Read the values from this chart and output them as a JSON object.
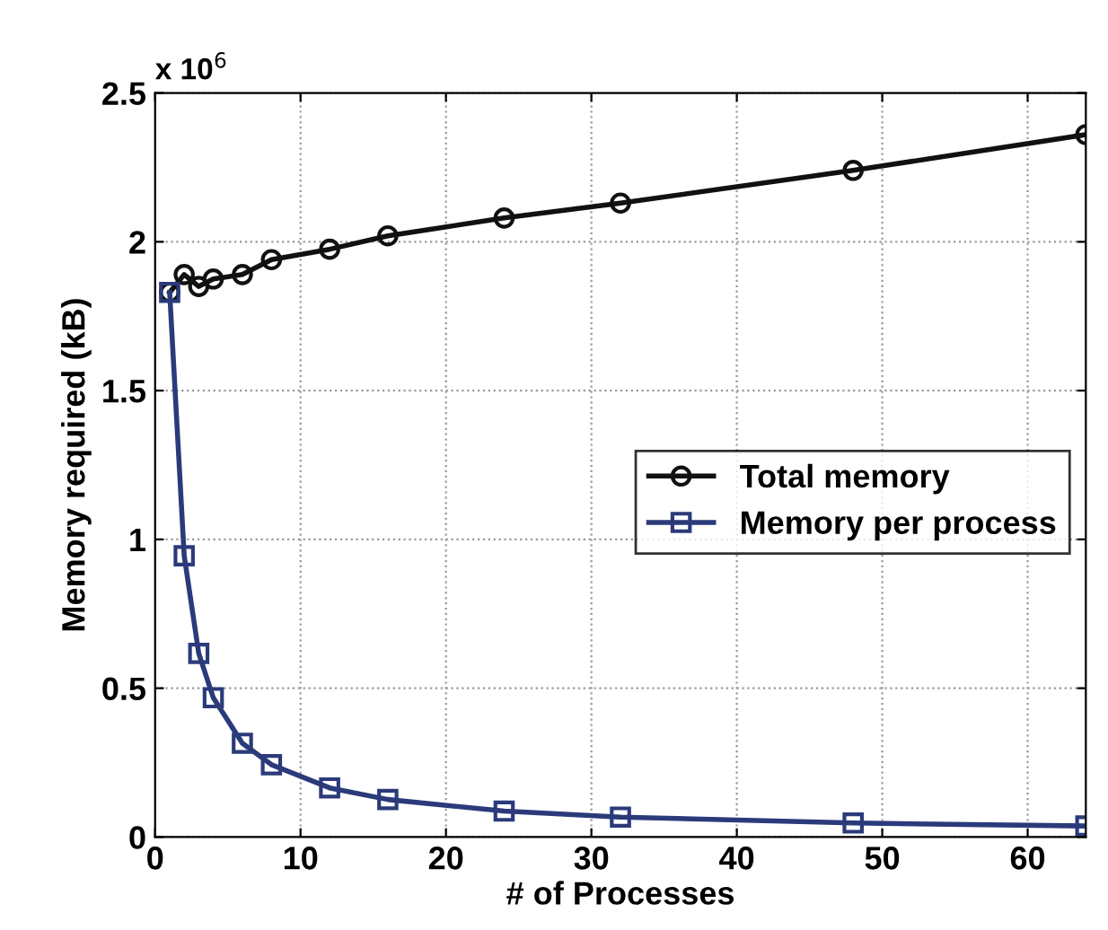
{
  "chart_data": {
    "type": "line",
    "xlabel": "# of Processes",
    "ylabel": "Memory required (kB)",
    "x": [
      1,
      2,
      3,
      4,
      6,
      8,
      12,
      16,
      24,
      32,
      48,
      64
    ],
    "series": [
      {
        "name": "Total memory",
        "color": "#111111",
        "marker": "circle",
        "values": [
          1.83,
          1.89,
          1.85,
          1.875,
          1.89,
          1.94,
          1.975,
          2.02,
          2.08,
          2.13,
          2.24,
          2.36
        ]
      },
      {
        "name": "Memory per process",
        "color": "#2b3a7a",
        "marker": "square",
        "values": [
          1.83,
          0.945,
          0.617,
          0.468,
          0.315,
          0.243,
          0.165,
          0.126,
          0.087,
          0.067,
          0.047,
          0.037
        ]
      }
    ],
    "xlim": [
      0,
      64
    ],
    "xticks": [
      0,
      10,
      20,
      30,
      40,
      50,
      60
    ],
    "ylim": [
      0,
      2.5
    ],
    "yticks": [
      0,
      0.5,
      1,
      1.5,
      2,
      2.5
    ],
    "annotations": [
      "x 10$^{6}$"
    ],
    "grid": true,
    "legend": "right",
    "line_style": "solid"
  }
}
